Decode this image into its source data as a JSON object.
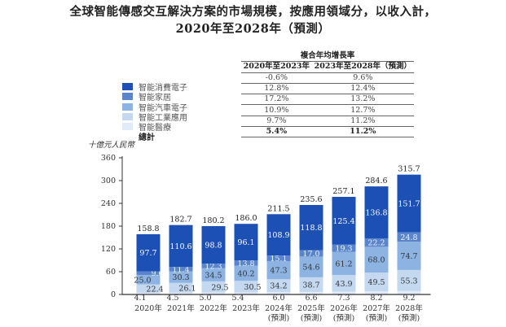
{
  "title_line1": "全球智能傳感交互解決方案的市場規模，按應用領域分，以收入計，",
  "title_line2": "2020年至2028年（預測）",
  "cagr_table": {
    "header": "複合年均增長率",
    "col1": "2020年至2023年",
    "col2": "2023年至2028年（預測）",
    "rows": [
      {
        "label": "智能消費電子",
        "c1": "-0.6%",
        "c2": "9.6%"
      },
      {
        "label": "智能家居",
        "c1": "12.8%",
        "c2": "12.4%"
      },
      {
        "label": "智能汽車電子",
        "c1": "17.2%",
        "c2": "13.2%"
      },
      {
        "label": "智能工業應用",
        "c1": "10.9%",
        "c2": "12.7%"
      },
      {
        "label": "智能醫療",
        "c1": "9.7%",
        "c2": "11.2%"
      }
    ],
    "total": {
      "label": "總計",
      "c1": "5.4%",
      "c2": "11.2%"
    }
  },
  "chart_data": {
    "type": "bar",
    "stacked": true,
    "ylabel": "十億元人民幣",
    "ylim": [
      0,
      360
    ],
    "yticks": [
      0,
      60,
      120,
      180,
      240,
      300,
      360
    ],
    "categories": [
      [
        "2020年"
      ],
      [
        "2021年"
      ],
      [
        "2022年"
      ],
      [
        "2023年"
      ],
      [
        "2024年",
        "(預測)"
      ],
      [
        "2025年",
        "(預測)"
      ],
      [
        "2026年",
        "(預測)"
      ],
      [
        "2027年",
        "(預測)"
      ],
      [
        "2028年",
        "(預測)"
      ]
    ],
    "series": [
      {
        "name": "智能醫療",
        "color": "#e2ecf8",
        "values": [
          4.1,
          4.5,
          5.0,
          5.4,
          6.0,
          6.6,
          7.3,
          8.2,
          9.2
        ]
      },
      {
        "name": "智能工業應用",
        "color": "#c4d8f0",
        "values": [
          22.4,
          26.1,
          29.5,
          30.5,
          34.2,
          38.7,
          43.9,
          49.5,
          55.3
        ]
      },
      {
        "name": "智能汽車電子",
        "color": "#8db3e2",
        "values": [
          25.0,
          30.3,
          34.5,
          40.2,
          47.3,
          54.6,
          61.2,
          68.0,
          74.7
        ]
      },
      {
        "name": "智能家居",
        "color": "#5a85cc",
        "values": [
          9.6,
          11.4,
          12.3,
          13.8,
          15.1,
          17.0,
          19.3,
          22.2,
          24.8
        ]
      },
      {
        "name": "智能消費電子",
        "color": "#1d50b4",
        "values": [
          97.7,
          110.6,
          98.8,
          96.1,
          108.9,
          118.8,
          125.4,
          136.8,
          151.7
        ]
      }
    ],
    "totals": [
      158.8,
      182.7,
      180.2,
      186.0,
      211.5,
      235.6,
      257.1,
      284.6,
      315.7
    ],
    "grid": false,
    "legend": "top-left"
  }
}
